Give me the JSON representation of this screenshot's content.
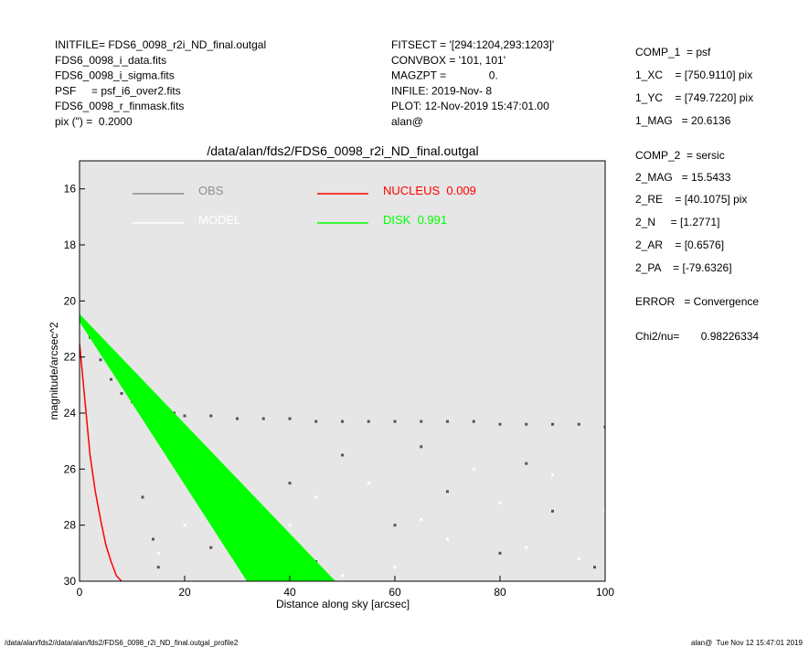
{
  "header": {
    "left": [
      "INITFILE= FDS6_0098_r2i_ND_final.outgal",
      "FDS6_0098_i_data.fits",
      "FDS6_0098_i_sigma.fits",
      "PSF     = psf_i6_over2.fits",
      "FDS6_0098_r_finmask.fits",
      "pix (\") =  0.2000"
    ],
    "middle": [
      "FITSECT = '[294:1204,293:1203]'",
      "CONVBOX = '101, 101'",
      "MAGZPT =              0.",
      "INFILE: 2019-Nov- 8",
      "PLOT: 12-Nov-2019 15:47:01.00",
      "alan@"
    ],
    "right": [
      "COMP_1  = psf",
      "1_XC    = [750.9110] pix",
      "1_YC    = [749.7220] pix",
      "1_MAG   = 20.6136",
      "COMP_2  = sersic",
      "2_MAG   = 15.5433",
      "2_RE    = [40.1075] pix",
      "2_N     = [1.2771]",
      "2_AR    = [0.6576]",
      "2_PA    = [-79.6326]",
      "ERROR   = Convergence",
      "Chi2/nu=       0.98226334"
    ]
  },
  "footer": {
    "left": "/data/alan/fds2//data/alan/fds2/FDS6_0098_r2i_ND_final.outgal_profile2",
    "right": "alan@  Tue Nov 12 15:47:01 2019"
  },
  "chart_data": {
    "type": "scatter",
    "title": "/data/alan/fds2/FDS6_0098_r2i_ND_final.outgal",
    "x_label": "Distance along sky [arcsec]",
    "y_label": "magnitude/arcsec^2",
    "xlim": [
      0,
      100
    ],
    "xticks": [
      0,
      20,
      40,
      60,
      80,
      100
    ],
    "ylim": [
      30,
      15
    ],
    "yticks": [
      16,
      18,
      20,
      22,
      24,
      26,
      28,
      30
    ],
    "background": "#e6e6e6",
    "series": [
      {
        "name": "OBS",
        "type": "scatter",
        "color": "#555555",
        "legend_color": "#8c8c8c",
        "x": [
          2,
          4,
          6,
          8,
          10,
          12,
          14,
          16,
          18,
          20,
          25,
          30,
          35,
          40,
          45,
          50,
          55,
          60,
          65,
          70,
          75,
          80,
          85,
          90,
          95,
          100,
          12,
          14,
          15,
          20,
          30,
          40,
          50,
          60,
          70,
          80,
          90,
          98,
          25,
          45,
          65,
          85
        ],
        "values": [
          21.3,
          22.1,
          22.8,
          23.3,
          23.6,
          23.8,
          23.9,
          24.0,
          24.0,
          24.1,
          24.1,
          24.2,
          24.2,
          24.2,
          24.3,
          24.3,
          24.3,
          24.3,
          24.3,
          24.3,
          24.3,
          24.4,
          24.4,
          24.4,
          24.4,
          24.5,
          27,
          28.5,
          29.5,
          26,
          27.5,
          26.5,
          25.5,
          28,
          26.8,
          29,
          27.5,
          29.5,
          28.8,
          29.3,
          25.2,
          25.8
        ]
      },
      {
        "name": "MODEL",
        "type": "scatter",
        "color": "#ffffff",
        "x": [
          15,
          20,
          25,
          30,
          35,
          45,
          55,
          60,
          65,
          70,
          75,
          80,
          85,
          90,
          95,
          100,
          50,
          40
        ],
        "values": [
          29,
          28,
          27.8,
          26.5,
          29,
          27,
          26.5,
          29.5,
          27.8,
          28.5,
          26,
          27.2,
          28.8,
          26.2,
          29.2,
          27.5,
          29.8,
          28
        ]
      },
      {
        "name": "NUCLEUS  0.009",
        "type": "line",
        "color": "#ff0000",
        "x": [
          0,
          1,
          2,
          3,
          4,
          5,
          6,
          7,
          8
        ],
        "values": [
          21.5,
          23.5,
          25.5,
          26.8,
          27.8,
          28.7,
          29.3,
          29.8,
          30
        ]
      },
      {
        "name": "DISK  0.991",
        "type": "area",
        "color": "#00ff00",
        "x": [
          0,
          48.5,
          32,
          0
        ],
        "values": [
          20.5,
          30,
          30,
          20.7
        ]
      }
    ]
  }
}
